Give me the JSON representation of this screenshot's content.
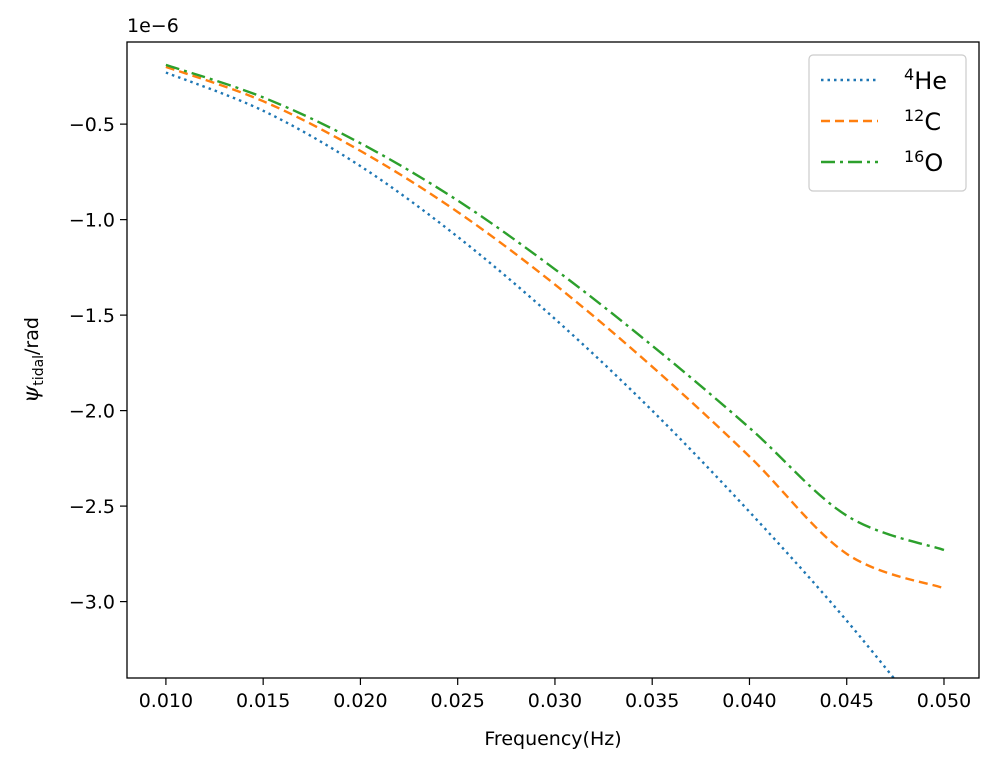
{
  "chart_data": {
    "type": "line",
    "xlabel": "Frequency(Hz)",
    "ylabel_main": "ψ",
    "ylabel_sub": "tidal",
    "ylabel_rest": "/rad",
    "offset_text": "1e−6",
    "xlim": [
      0.008,
      0.0518
    ],
    "ylim": [
      -3.4e-06,
      -7e-08
    ],
    "xticks": [
      0.01,
      0.015,
      0.02,
      0.025,
      0.03,
      0.035,
      0.04,
      0.045,
      0.05
    ],
    "xtick_labels": [
      "0.010",
      "0.015",
      "0.020",
      "0.025",
      "0.030",
      "0.035",
      "0.040",
      "0.045",
      "0.050"
    ],
    "yticks": [
      -5e-07,
      -1e-06,
      -1.5e-06,
      -2e-06,
      -2.5e-06,
      -3e-06
    ],
    "ytick_labels": [
      "−0.5",
      "−1.0",
      "−1.5",
      "−2.0",
      "−2.5",
      "−3.0"
    ],
    "legend_position": "top-right",
    "grid": false,
    "series": [
      {
        "sup": "4",
        "base": "He",
        "color": "#1f77b4",
        "dash": "dotted",
        "x": [
          0.01,
          0.015,
          0.02,
          0.025,
          0.03,
          0.035,
          0.04,
          0.045,
          0.05
        ],
        "y": [
          -2.3e-07,
          -4.3e-07,
          -7.2e-07,
          -1.09e-06,
          -1.52e-06,
          -2e-06,
          -2.53e-06,
          -3.1e-06,
          -3.73e-06
        ]
      },
      {
        "sup": "12",
        "base": "C",
        "color": "#ff7f0e",
        "dash": "dashed",
        "x": [
          0.01,
          0.015,
          0.02,
          0.025,
          0.03,
          0.035,
          0.04,
          0.045,
          0.05
        ],
        "y": [
          -2e-07,
          -3.8e-07,
          -6.4e-07,
          -9.6e-07,
          -1.34e-06,
          -1.77e-06,
          -2.24e-06,
          -2.75e-06,
          -2.93e-06
        ]
      },
      {
        "sup": "16",
        "base": "O",
        "color": "#2ca02c",
        "dash": "dashdot",
        "x": [
          0.01,
          0.015,
          0.02,
          0.025,
          0.03,
          0.035,
          0.04,
          0.045,
          0.05
        ],
        "y": [
          -1.9e-07,
          -3.6e-07,
          -6e-07,
          -9e-07,
          -1.26e-06,
          -1.66e-06,
          -2.09e-06,
          -2.55e-06,
          -2.73e-06
        ]
      }
    ]
  }
}
